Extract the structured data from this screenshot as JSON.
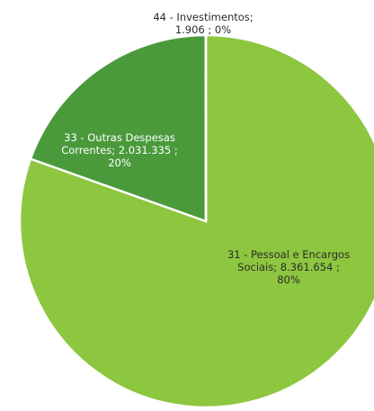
{
  "chart_data": {
    "type": "pie",
    "title": "",
    "slices": [
      {
        "category": "31 - Pessoal e Encargos Sociais",
        "value": 8361654,
        "value_label": "8.361.654",
        "percent_label": "80%",
        "color": "#8dc63f",
        "label_lines": [
          "31 - Pessoal e Encargos",
          "Sociais; 8.361.654 ;",
          "80%"
        ]
      },
      {
        "category": "33 - Outras Despesas Correntes",
        "value": 2031335,
        "value_label": "2.031.335",
        "percent_label": "20%",
        "color": "#4a9a3c",
        "label_lines": [
          "33 - Outras Despesas",
          "Correntes; 2.031.335 ;",
          "20%"
        ]
      },
      {
        "category": "44 - Investimentos",
        "value": 1906,
        "value_label": "1.906",
        "percent_label": "0%",
        "color": "#2f6f2f",
        "label_lines": [
          "44 - Investimentos;",
          "1.906 ; 0%"
        ]
      }
    ],
    "start_angle_deg": 0,
    "direction": "clockwise",
    "label_colors": {
      "inside_light": "#ffffff",
      "outside": "#2b2b2b"
    },
    "slice_border": "#ffffff"
  }
}
